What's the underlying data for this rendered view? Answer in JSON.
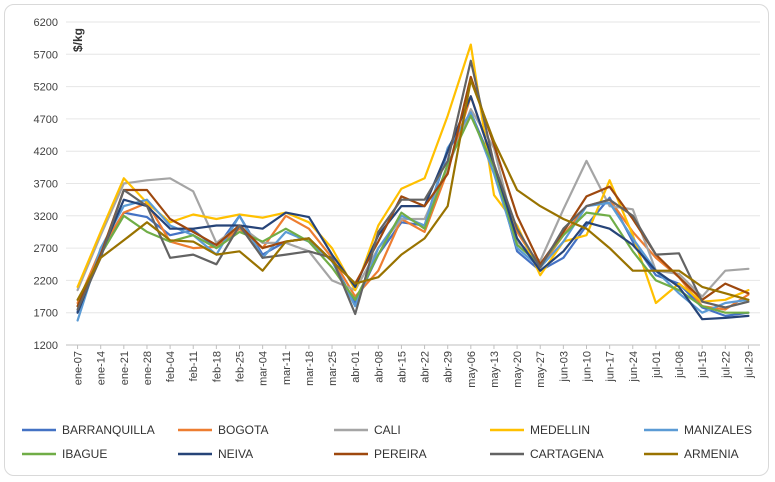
{
  "chart_data": {
    "type": "line",
    "ylabel": "$/kg",
    "ylim": [
      1200,
      6200
    ],
    "yticks": [
      1200,
      1700,
      2200,
      2700,
      3200,
      3700,
      4200,
      4700,
      5200,
      5700,
      6200
    ],
    "grid": "horizontal",
    "legend_position": "bottom",
    "categories": [
      "ene-07",
      "ene-14",
      "ene-21",
      "ene-28",
      "feb-04",
      "feb-11",
      "feb-18",
      "feb-25",
      "mar-04",
      "mar-11",
      "mar-18",
      "mar-25",
      "abr-01",
      "abr-08",
      "abr-15",
      "abr-22",
      "abr-29",
      "may-06",
      "may-13",
      "may-20",
      "may-27",
      "jun-03",
      "jun-10",
      "jun-17",
      "jun-24",
      "jul-01",
      "jul-08",
      "jul-15",
      "jul-22",
      "jul-29"
    ],
    "series": [
      {
        "name": "BARRANQUILLA",
        "color": "#4472c4",
        "values": [
          1720,
          2650,
          3250,
          3180,
          2900,
          2980,
          2700,
          3200,
          2600,
          2800,
          2850,
          2500,
          1850,
          2600,
          3100,
          3050,
          4200,
          4800,
          3950,
          2650,
          2350,
          2550,
          3050,
          3480,
          2800,
          2280,
          2150,
          1780,
          1650,
          1700
        ]
      },
      {
        "name": "BOGOTA",
        "color": "#ed7d31",
        "values": [
          1850,
          2680,
          3250,
          3400,
          2800,
          2700,
          2720,
          3000,
          2700,
          3200,
          3000,
          2550,
          1950,
          2350,
          3150,
          2950,
          3900,
          5050,
          4000,
          2950,
          2400,
          2900,
          3350,
          3450,
          2950,
          2550,
          2250,
          1800,
          1750,
          1980
        ]
      },
      {
        "name": "CALI",
        "color": "#a5a5a5",
        "values": [
          2050,
          2900,
          3700,
          3750,
          3780,
          3580,
          2780,
          3050,
          2780,
          2780,
          2650,
          2200,
          2050,
          2700,
          3150,
          3150,
          3950,
          4850,
          4250,
          2800,
          2500,
          3300,
          4050,
          3350,
          3300,
          2350,
          2300,
          1950,
          2350,
          2380
        ]
      },
      {
        "name": "MEDELLIN",
        "color": "#ffc000",
        "values": [
          2100,
          2950,
          3780,
          3400,
          3100,
          3220,
          3150,
          3220,
          3170,
          3250,
          3100,
          2700,
          2050,
          3050,
          3620,
          3780,
          4750,
          5850,
          3520,
          3050,
          2280,
          2800,
          2900,
          3750,
          2900,
          1850,
          2150,
          1870,
          1900,
          2050
        ]
      },
      {
        "name": "MANIZALES",
        "color": "#5b9bd5",
        "values": [
          1580,
          2700,
          3350,
          3450,
          3050,
          2900,
          2600,
          3200,
          2550,
          2950,
          2800,
          2500,
          1800,
          2700,
          3200,
          3050,
          4250,
          4800,
          3850,
          2700,
          2400,
          2800,
          3350,
          3400,
          2850,
          2350,
          2000,
          1700,
          1850,
          1900
        ]
      },
      {
        "name": "IBAGUE",
        "color": "#70ad47",
        "values": [
          1800,
          2600,
          3200,
          2950,
          2800,
          2900,
          2700,
          2950,
          2800,
          3000,
          2800,
          2400,
          1900,
          2600,
          3250,
          3000,
          4000,
          4750,
          3950,
          2750,
          2450,
          2900,
          3250,
          3200,
          2650,
          2200,
          2050,
          1800,
          1700,
          1700
        ]
      },
      {
        "name": "NEIVA",
        "color": "#264478",
        "values": [
          1700,
          2600,
          3450,
          3350,
          3000,
          3000,
          3050,
          3050,
          3000,
          3250,
          3180,
          2600,
          2100,
          2900,
          3350,
          3350,
          4200,
          5050,
          4000,
          2850,
          2350,
          2650,
          3100,
          3000,
          2750,
          2350,
          2100,
          1600,
          1620,
          1650
        ]
      },
      {
        "name": "PEREIRA",
        "color": "#9e480e",
        "values": [
          1800,
          2600,
          3600,
          3600,
          3150,
          2950,
          2750,
          3050,
          2700,
          2800,
          2850,
          2500,
          2150,
          2800,
          3500,
          3350,
          3850,
          5350,
          4300,
          3200,
          2450,
          2950,
          3500,
          3650,
          3150,
          2600,
          2250,
          1900,
          2150,
          2000
        ]
      },
      {
        "name": "CARTAGENA",
        "color": "#636363",
        "values": [
          1750,
          2550,
          3600,
          3350,
          2550,
          2600,
          2450,
          3050,
          2550,
          2600,
          2650,
          2550,
          1680,
          2950,
          3450,
          3450,
          4050,
          5600,
          4000,
          3000,
          2400,
          3000,
          3350,
          3450,
          3200,
          2600,
          2620,
          1870,
          1780,
          1870
        ]
      },
      {
        "name": "ARMENIA",
        "color": "#997300",
        "values": [
          1900,
          2550,
          2820,
          3100,
          2820,
          2800,
          2600,
          2650,
          2350,
          2800,
          2850,
          2500,
          2150,
          2250,
          2600,
          2850,
          3350,
          5300,
          4350,
          3600,
          3350,
          3150,
          3000,
          2700,
          2350,
          2350,
          2350,
          2100,
          2000,
          1900
        ]
      }
    ]
  }
}
